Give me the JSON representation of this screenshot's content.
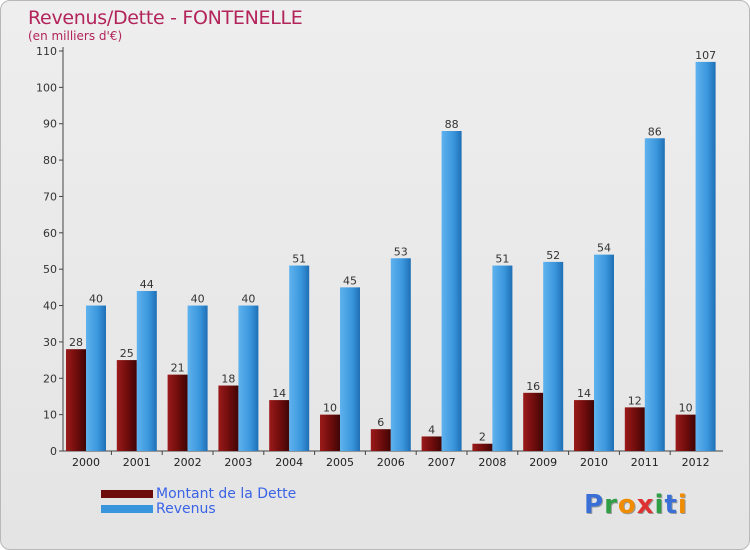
{
  "title": "Revenus/Dette - FONTENELLE",
  "subtitle": "(en milliers d'€)",
  "logo": {
    "text": "Proxiti",
    "letters": [
      {
        "char": "P",
        "color": "#3a6fd8"
      },
      {
        "char": "r",
        "color": "#2f9e44"
      },
      {
        "char": "o",
        "color": "#f08c00"
      },
      {
        "char": "x",
        "color": "#e03131"
      },
      {
        "char": "i",
        "color": "#2f9e44"
      },
      {
        "char": "t",
        "color": "#3a6fd8"
      },
      {
        "char": "i",
        "color": "#f08c00"
      }
    ]
  },
  "legend": {
    "items": [
      {
        "label": "Montant de la Dette",
        "color": "#6e0c0c"
      },
      {
        "label": "Revenus",
        "color": "#3a96dc"
      }
    ]
  },
  "chart_data": {
    "type": "bar",
    "title": "Revenus/Dette - FONTENELLE",
    "subtitle": "(en milliers d'€)",
    "categories": [
      "2000",
      "2001",
      "2002",
      "2003",
      "2004",
      "2005",
      "2006",
      "2007",
      "2008",
      "2009",
      "2010",
      "2011",
      "2012"
    ],
    "series": [
      {
        "name": "Montant de la Dette",
        "values": [
          28,
          25,
          21,
          18,
          14,
          10,
          6,
          4,
          2,
          16,
          14,
          12,
          10
        ],
        "color": "#6e0c0c"
      },
      {
        "name": "Revenus",
        "values": [
          40,
          44,
          40,
          40,
          51,
          45,
          53,
          88,
          51,
          52,
          54,
          86,
          107
        ],
        "color": "#3a96dc"
      }
    ],
    "ylim": [
      0,
      110
    ],
    "yticks": [
      0,
      10,
      20,
      30,
      40,
      50,
      60,
      70,
      80,
      90,
      100,
      110
    ],
    "grid": false,
    "legend_position": "bottom-left",
    "data_labels": true
  }
}
